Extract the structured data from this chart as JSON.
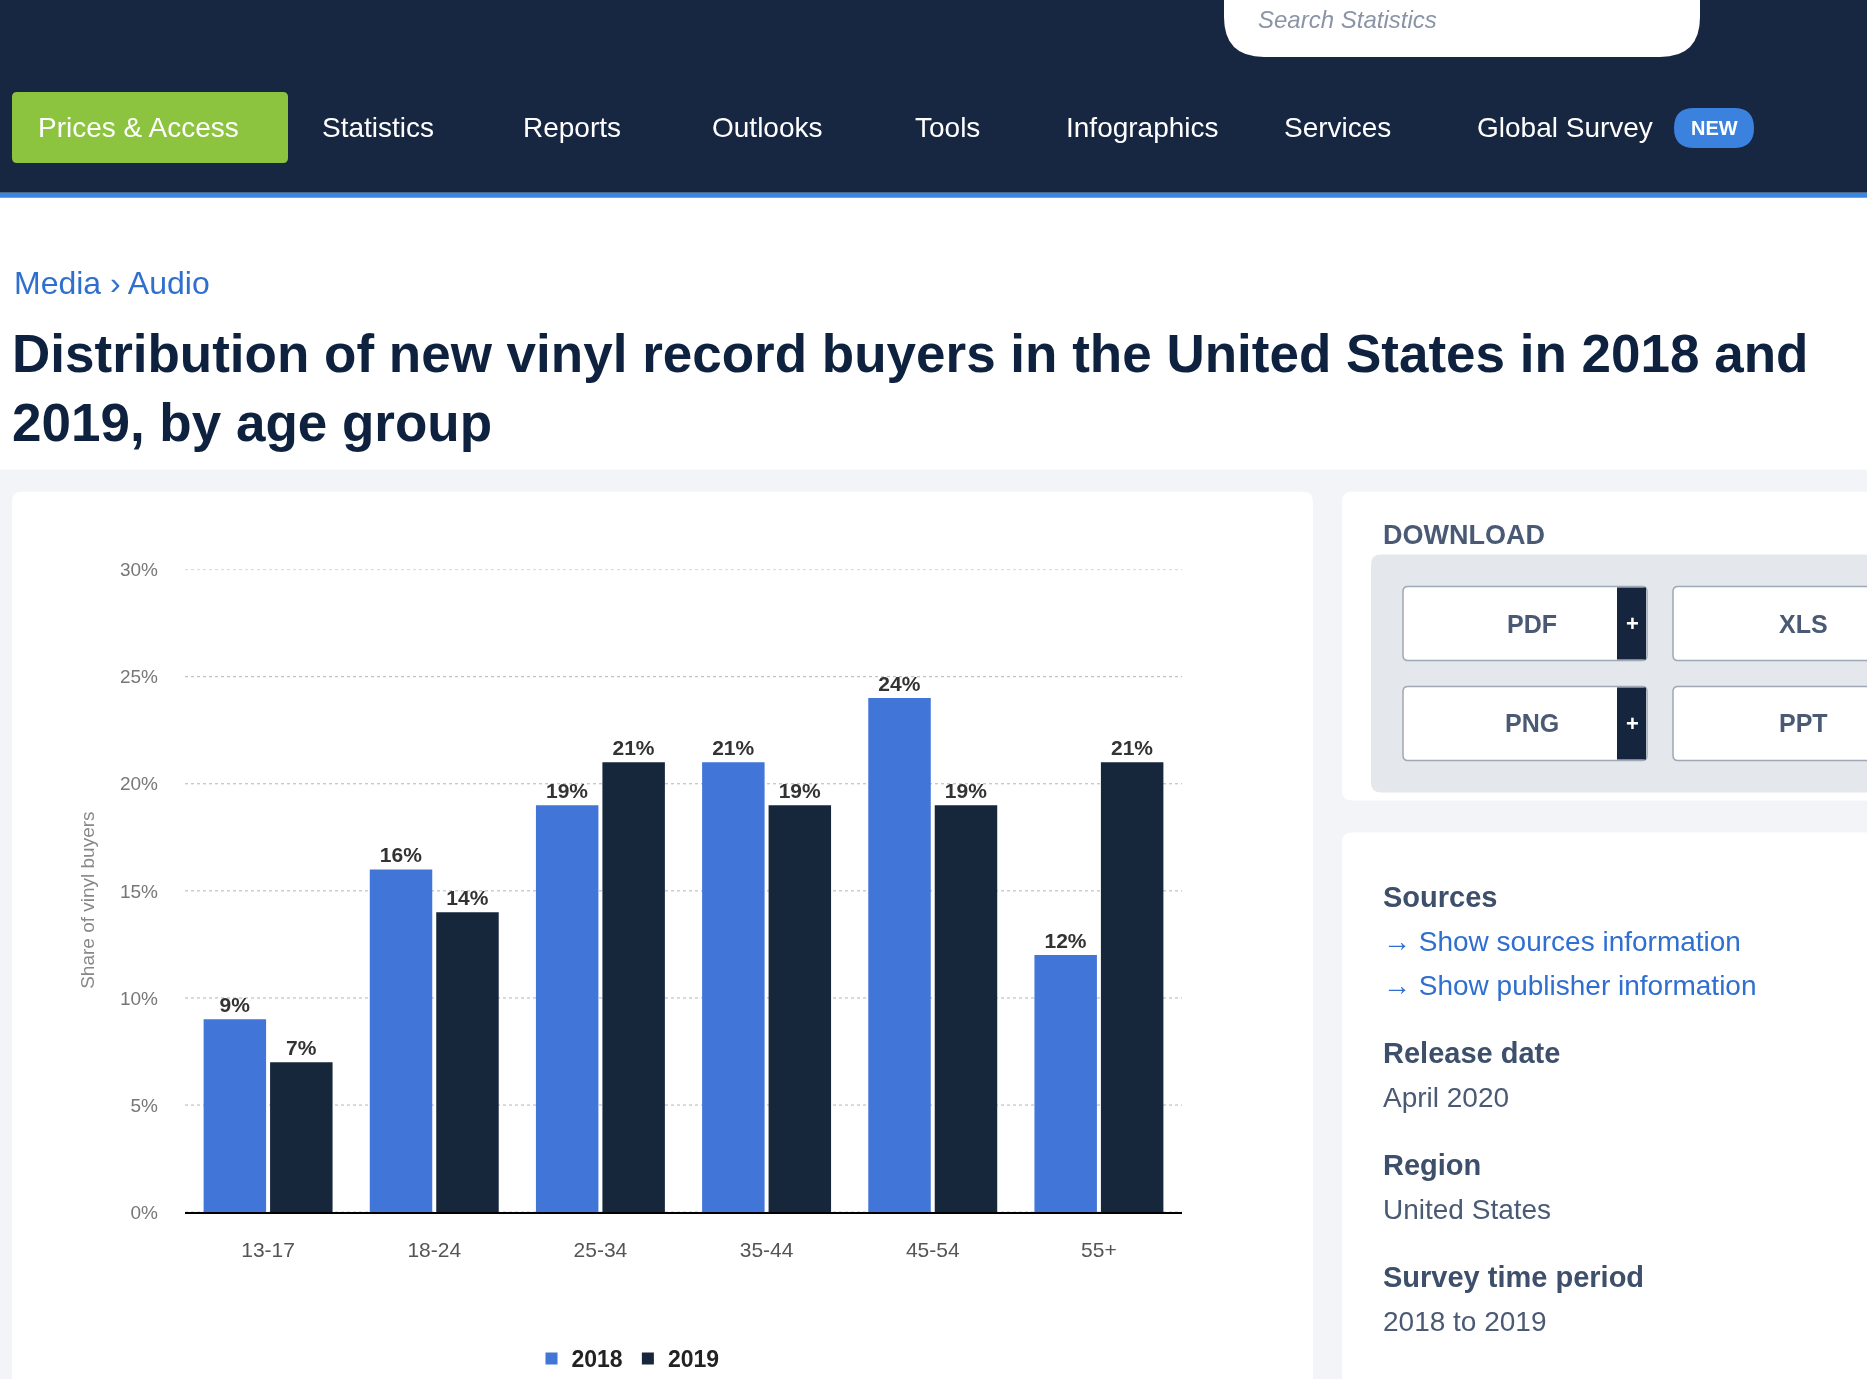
{
  "chart_data": {
    "type": "bar",
    "title": "Distribution of new vinyl record buyers in the United States in 2018 and 2019, by age group",
    "ylabel": "Share of vinyl buyers",
    "categories": [
      "13-17",
      "18-24",
      "25-34",
      "35-44",
      "45-54",
      "55+"
    ],
    "series": [
      {
        "name": "2018",
        "color": "#4175d8",
        "values": [
          9,
          16,
          19,
          21,
          24,
          12
        ],
        "value_labels": [
          "9%",
          "16%",
          "19%",
          "21%",
          "24%",
          "12%"
        ]
      },
      {
        "name": "2019",
        "color": "#16263b",
        "values": [
          7,
          14,
          21,
          19,
          19,
          21
        ],
        "value_labels": [
          "7%",
          "14%",
          "21%",
          "19%",
          "19%",
          "21%"
        ]
      }
    ],
    "ylim": [
      0,
      30
    ],
    "yticks": [
      {
        "value": 0,
        "label": "0%"
      },
      {
        "value": 5,
        "label": "5%"
      },
      {
        "value": 10,
        "label": "10%"
      },
      {
        "value": 15,
        "label": "15%"
      },
      {
        "value": 20,
        "label": "20%"
      },
      {
        "value": 25,
        "label": "25%"
      },
      {
        "value": 30,
        "label": "30%"
      }
    ],
    "grid": "y",
    "legend": "bottom",
    "annotations": [
      "Search Statistics",
      "Prices & Access",
      "Statistics",
      "Reports",
      "Outlooks",
      "Tools",
      "Infographics",
      "Services",
      "Global Survey",
      "NEW",
      "Media › Audio",
      "DOWNLOAD",
      "PDF",
      "+",
      "XLS",
      "PNG",
      "+",
      "PPT",
      "Sources",
      "→ Show sources information",
      "→ Show publisher information",
      "Release date",
      "April 2020",
      "Region",
      "United States",
      "Survey time period",
      "2018 to 2019"
    ]
  }
}
